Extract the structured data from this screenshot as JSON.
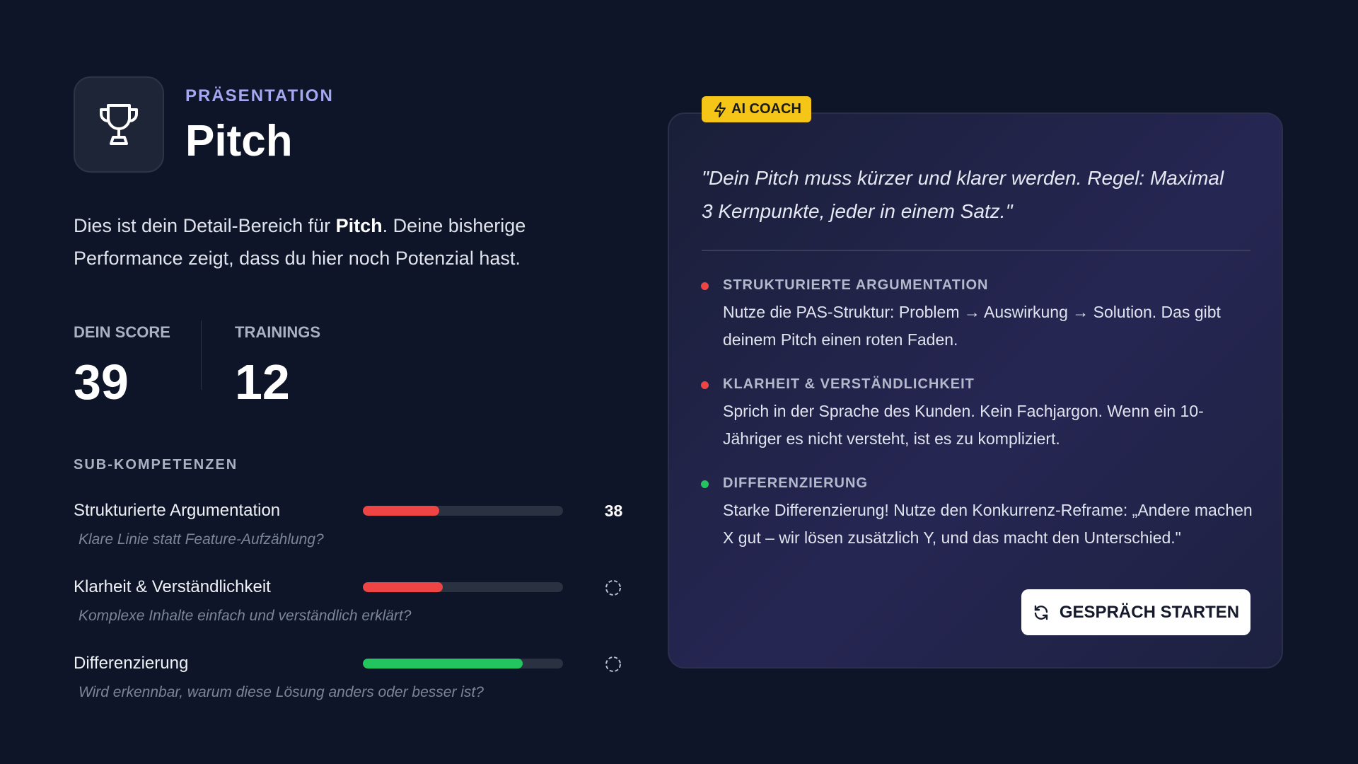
{
  "header": {
    "category": "PRÄSENTATION",
    "title": "Pitch"
  },
  "description": {
    "before": "Dies ist dein Detail-Bereich für ",
    "bold": "Pitch",
    "after": ". Deine bisherige Performance zeigt, dass du hier noch Potenzial hast."
  },
  "stats": [
    {
      "label": "DEIN SCORE",
      "value": 39
    },
    {
      "label": "TRAININGS",
      "value": 12
    }
  ],
  "sub_competencies": {
    "heading": "SUB-KOMPETENZEN",
    "bar_max": 100,
    "items": [
      {
        "name": "Strukturierte Argumentation",
        "hint": "Klare Linie statt Feature-Aufzählung?",
        "value": 38,
        "color": "#ef4444",
        "show_value": true
      },
      {
        "name": "Klarheit & Verständlichkeit",
        "hint": "Komplexe Inhalte einfach und verständlich erklärt?",
        "value": 40,
        "color": "#ef4444",
        "show_value": false
      },
      {
        "name": "Differenzierung",
        "hint": "Wird erkennbar, warum diese Lösung anders oder besser ist?",
        "value": 80,
        "color": "#22c55e",
        "show_value": false
      }
    ]
  },
  "coach": {
    "badge": "AI COACH",
    "quote": "\"Dein Pitch muss kürzer und klarer werden. Regel: Maximal 3 Kernpunkte, jeder in einem Satz.\"",
    "tips": [
      {
        "title": "STRUKTURIERTE ARGUMENTATION",
        "text": "Nutze die PAS-Struktur: Problem → Auswirkung → Solution. Das gibt deinem Pitch einen roten Faden.",
        "color": "#ef4444"
      },
      {
        "title": "KLARHEIT & VERSTÄNDLICHKEIT",
        "text": "Sprich in der Sprache des Kunden. Kein Fachjargon. Wenn ein 10-Jähriger es nicht versteht, ist es zu kompliziert.",
        "color": "#ef4444"
      },
      {
        "title": "DIFFERENZIERUNG",
        "text": "Starke Differenzierung! Nutze den Konkurrenz-Reframe: „Andere machen X gut – wir lösen zusätzlich Y, und das macht den Unterschied.\"",
        "color": "#22c55e"
      }
    ],
    "button": "GESPRÄCH STARTEN"
  }
}
